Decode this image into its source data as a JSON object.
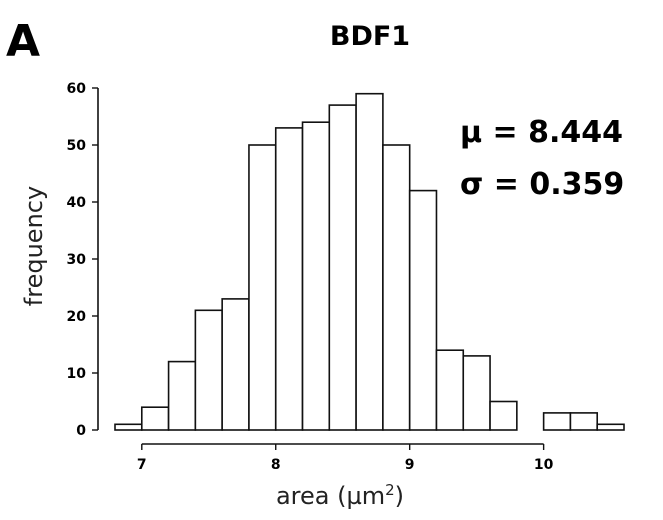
{
  "panel_label": "A",
  "chart_data": {
    "type": "bar",
    "title": "BDF1",
    "xlabel": "area (µm²)",
    "xlabel_base": "area (µm",
    "xlabel_sup": "2",
    "xlabel_close": ")",
    "ylabel": "frequency",
    "annotations": [
      "μ = 8.444",
      "σ = 0.359"
    ],
    "bin_width": 0.2,
    "bins": [
      {
        "x_start": 6.8,
        "x_end": 7.0,
        "value": 1
      },
      {
        "x_start": 7.0,
        "x_end": 7.2,
        "value": 4
      },
      {
        "x_start": 7.2,
        "x_end": 7.4,
        "value": 12
      },
      {
        "x_start": 7.4,
        "x_end": 7.6,
        "value": 21
      },
      {
        "x_start": 7.6,
        "x_end": 7.8,
        "value": 23
      },
      {
        "x_start": 7.8,
        "x_end": 8.0,
        "value": 50
      },
      {
        "x_start": 8.0,
        "x_end": 8.2,
        "value": 53
      },
      {
        "x_start": 8.2,
        "x_end": 8.4,
        "value": 54
      },
      {
        "x_start": 8.4,
        "x_end": 8.6,
        "value": 57
      },
      {
        "x_start": 8.6,
        "x_end": 8.8,
        "value": 59
      },
      {
        "x_start": 8.8,
        "x_end": 9.0,
        "value": 50
      },
      {
        "x_start": 9.0,
        "x_end": 9.2,
        "value": 42
      },
      {
        "x_start": 9.2,
        "x_end": 9.4,
        "value": 14
      },
      {
        "x_start": 9.4,
        "x_end": 9.6,
        "value": 13
      },
      {
        "x_start": 9.6,
        "x_end": 9.8,
        "value": 5
      },
      {
        "x_start": 9.8,
        "x_end": 10.0,
        "value": 0
      },
      {
        "x_start": 10.0,
        "x_end": 10.2,
        "value": 3
      },
      {
        "x_start": 10.2,
        "x_end": 10.4,
        "value": 3
      },
      {
        "x_start": 10.4,
        "x_end": 10.6,
        "value": 1
      }
    ],
    "xlim": [
      6.8,
      10.6
    ],
    "ylim": [
      0,
      60
    ],
    "x_ticks": [
      7,
      8,
      9,
      10
    ],
    "y_ticks": [
      0,
      10,
      20,
      30,
      40,
      50,
      60
    ],
    "grid": false,
    "legend": "none"
  }
}
